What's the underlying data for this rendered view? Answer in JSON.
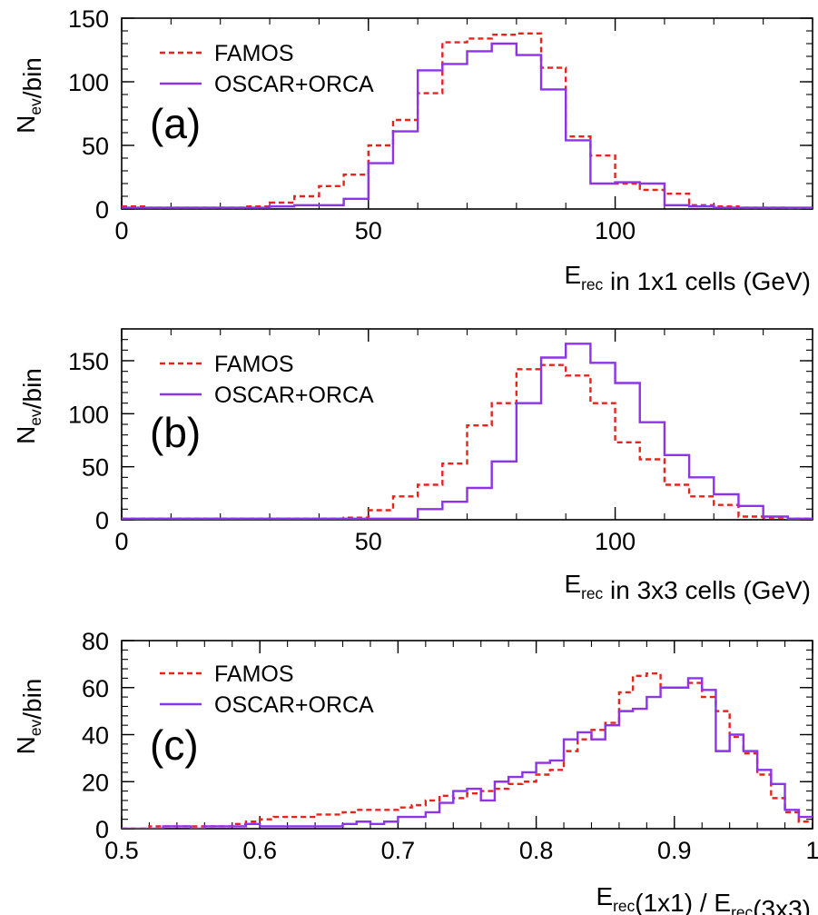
{
  "chart_data": [
    {
      "type": "histogram",
      "panel_label": "(a)",
      "ylabel": "N_ev/bin",
      "xlabel": "E_rec in 1x1 cells (GeV)",
      "xlim": [
        0,
        140
      ],
      "ylim": [
        0,
        150
      ],
      "x_ticks": [
        0,
        50,
        100
      ],
      "y_ticks": [
        0,
        50,
        100,
        150
      ],
      "grid": false,
      "legend_position": "top-left",
      "bin_edges": [
        0,
        5,
        10,
        15,
        20,
        25,
        30,
        35,
        40,
        45,
        50,
        55,
        60,
        65,
        70,
        75,
        80,
        85,
        90,
        95,
        100,
        105,
        110,
        115,
        120,
        125,
        130,
        135,
        140
      ],
      "series": [
        {
          "name": "FAMOS",
          "style": "dashed",
          "color": "#e8231c",
          "values": [
            2,
            1,
            1,
            1,
            1,
            2,
            5,
            10,
            18,
            27,
            50,
            70,
            91,
            131,
            134,
            137,
            138,
            111,
            57,
            42,
            20,
            15,
            12,
            3,
            2,
            1,
            1,
            0
          ]
        },
        {
          "name": "OSCAR+ORCA",
          "style": "solid",
          "color": "#8d33e8",
          "values": [
            1,
            1,
            1,
            1,
            1,
            1,
            2,
            3,
            3,
            8,
            36,
            61,
            109,
            114,
            124,
            130,
            121,
            94,
            54,
            20,
            21,
            20,
            3,
            2,
            1,
            1,
            1,
            1
          ]
        }
      ]
    },
    {
      "type": "histogram",
      "panel_label": "(b)",
      "ylabel": "N_ev/bin",
      "xlabel": "E_rec in 3x3 cells (GeV)",
      "xlim": [
        0,
        140
      ],
      "ylim": [
        0,
        180
      ],
      "x_ticks": [
        0,
        50,
        100
      ],
      "y_ticks": [
        0,
        50,
        100,
        150
      ],
      "grid": false,
      "legend_position": "top-left",
      "bin_edges": [
        0,
        5,
        10,
        15,
        20,
        25,
        30,
        35,
        40,
        45,
        50,
        55,
        60,
        65,
        70,
        75,
        80,
        85,
        90,
        95,
        100,
        105,
        110,
        115,
        120,
        125,
        130,
        135,
        140
      ],
      "series": [
        {
          "name": "FAMOS",
          "style": "dashed",
          "color": "#e8231c",
          "values": [
            1,
            1,
            1,
            1,
            1,
            1,
            1,
            1,
            1,
            2,
            9,
            22,
            33,
            53,
            89,
            110,
            142,
            146,
            136,
            110,
            73,
            57,
            33,
            22,
            14,
            3,
            2,
            1
          ]
        },
        {
          "name": "OSCAR+ORCA",
          "style": "solid",
          "color": "#8d33e8",
          "values": [
            1,
            1,
            1,
            1,
            1,
            1,
            1,
            1,
            1,
            1,
            1,
            1,
            10,
            17,
            30,
            55,
            110,
            153,
            166,
            148,
            129,
            92,
            61,
            40,
            24,
            13,
            3,
            1
          ]
        }
      ]
    },
    {
      "type": "histogram",
      "panel_label": "(c)",
      "ylabel": "N_ev/bin",
      "xlabel": "E_rec(1x1) / E_rec(3x3)",
      "xlim": [
        0.5,
        1.0
      ],
      "ylim": [
        0,
        80
      ],
      "x_ticks": [
        0.5,
        0.6,
        0.7,
        0.8,
        0.9,
        1
      ],
      "y_ticks": [
        0,
        20,
        40,
        60,
        80
      ],
      "grid": false,
      "legend_position": "top-left",
      "bin_edges": [
        0.5,
        0.51,
        0.52,
        0.53,
        0.54,
        0.55,
        0.56,
        0.57,
        0.58,
        0.59,
        0.6,
        0.61,
        0.62,
        0.63,
        0.64,
        0.65,
        0.66,
        0.67,
        0.68,
        0.69,
        0.7,
        0.71,
        0.72,
        0.73,
        0.74,
        0.75,
        0.76,
        0.77,
        0.78,
        0.79,
        0.8,
        0.81,
        0.82,
        0.83,
        0.84,
        0.85,
        0.86,
        0.87,
        0.88,
        0.89,
        0.9,
        0.91,
        0.92,
        0.93,
        0.94,
        0.95,
        0.96,
        0.97,
        0.98,
        0.99,
        1.0
      ],
      "series": [
        {
          "name": "FAMOS",
          "style": "dashed",
          "color": "#e8231c",
          "values": [
            0,
            0,
            1,
            1,
            1,
            1,
            1,
            1,
            2,
            3,
            4,
            5,
            5,
            5,
            6,
            6,
            7,
            8,
            8,
            8,
            9,
            10,
            12,
            14,
            13,
            15,
            16,
            17,
            19,
            20,
            23,
            25,
            33,
            38,
            42,
            45,
            58,
            65,
            66,
            60,
            60,
            62,
            56,
            50,
            39,
            32,
            23,
            13,
            7,
            3
          ]
        },
        {
          "name": "OSCAR+ORCA",
          "style": "solid",
          "color": "#8d33e8",
          "values": [
            0,
            0,
            0,
            1,
            1,
            0,
            1,
            1,
            1,
            2,
            1,
            1,
            1,
            1,
            1,
            1,
            2,
            3,
            2,
            3,
            5,
            5,
            7,
            11,
            16,
            17,
            12,
            20,
            22,
            24,
            28,
            29,
            38,
            41,
            38,
            44,
            50,
            51,
            56,
            60,
            60,
            64,
            59,
            33,
            40,
            33,
            25,
            19,
            8,
            5
          ]
        }
      ]
    }
  ]
}
